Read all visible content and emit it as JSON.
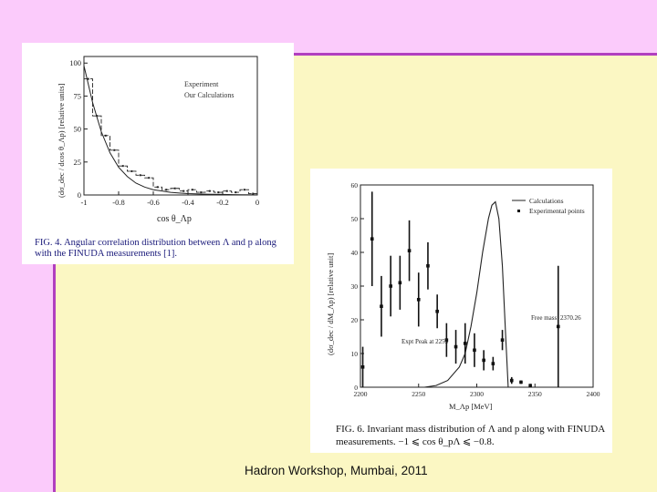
{
  "slide": {
    "footer": "Hadron Workshop, Mumbai, 2011",
    "colors": {
      "background": "#fbf7c3",
      "header": "#fbcbfb",
      "accent_line": "#b13fbf"
    }
  },
  "chart_data": [
    {
      "type": "line",
      "figure": "FIG. 4",
      "caption": "FIG. 4. Angular correlation distribution between Λ and p along with the FINUDA measurements [1].",
      "xlabel": "cos θ_Λp",
      "ylabel": "(dσ_dec / dcos θ_Λp) [relative units]",
      "xlim": [
        -1,
        0
      ],
      "ylim": [
        0,
        105
      ],
      "xticks": [
        "-1",
        "-0.8",
        "-0.6",
        "-0.4",
        "-0.2",
        "0"
      ],
      "yticks": [
        "0",
        "25",
        "50",
        "75",
        "100"
      ],
      "legend": [
        "Experiment",
        "Our Calculations"
      ],
      "legend_position": "top-right",
      "series": [
        {
          "name": "Experiment",
          "style": "histogram",
          "x": [
            -0.975,
            -0.925,
            -0.875,
            -0.825,
            -0.775,
            -0.725,
            -0.675,
            -0.625,
            -0.575,
            -0.525,
            -0.475,
            -0.425,
            -0.375,
            -0.325,
            -0.275,
            -0.225,
            -0.175,
            -0.125,
            -0.075,
            -0.025
          ],
          "y": [
            88,
            60,
            45,
            34,
            22,
            18,
            15,
            13,
            6,
            4,
            5,
            3,
            4,
            2,
            3,
            2,
            3,
            2,
            4,
            1
          ]
        },
        {
          "name": "Our Calculations",
          "style": "smooth",
          "x": [
            -1,
            -0.95,
            -0.9,
            -0.85,
            -0.8,
            -0.75,
            -0.7,
            -0.65,
            -0.6,
            -0.55,
            -0.5,
            -0.45,
            -0.4,
            -0.3,
            -0.2,
            -0.1,
            0
          ],
          "y": [
            98,
            70,
            48,
            32,
            21,
            14,
            9,
            6,
            4,
            3,
            2,
            1.5,
            1,
            0.6,
            0.4,
            0.2,
            0.1
          ]
        }
      ]
    },
    {
      "type": "scatter",
      "figure": "FIG. 6",
      "caption": "FIG. 6. Invariant mass distribution of Λ and p along with FINUDA measurements. −1 ⩽ cos θ_pΛ ⩽ −0.8.",
      "xlabel": "M_Λp [MeV]",
      "ylabel": "(dσ_dec / dM_Λp) [relative unit]",
      "xlim": [
        2200,
        2400
      ],
      "ylim": [
        0,
        60
      ],
      "xticks": [
        "2200",
        "2250",
        "2300",
        "2350",
        "2400"
      ],
      "yticks": [
        "0",
        "10",
        "20",
        "30",
        "40",
        "50",
        "60"
      ],
      "legend": [
        "Calculations",
        "Experimental points"
      ],
      "legend_position": "top-right",
      "annotations": [
        {
          "text": "Free mass: 2370.26",
          "x": 2370,
          "y": 20
        },
        {
          "text": "Expt Peak at 2255",
          "x": 2255,
          "y": 13
        }
      ],
      "series": [
        {
          "name": "Calculations",
          "style": "line",
          "x": [
            2255,
            2265,
            2275,
            2285,
            2290,
            2295,
            2300,
            2305,
            2310,
            2313,
            2316,
            2319,
            2322,
            2325,
            2327
          ],
          "y": [
            0,
            0.5,
            2,
            6,
            10,
            18,
            28,
            40,
            50,
            54,
            55,
            50,
            36,
            14,
            0
          ]
        },
        {
          "name": "Experimental points",
          "style": "points",
          "x": [
            2202,
            2210,
            2218,
            2226,
            2234,
            2242,
            2250,
            2258,
            2266,
            2274,
            2282,
            2290,
            2298,
            2306,
            2314,
            2322,
            2330,
            2338,
            2346,
            2370
          ],
          "y": [
            6,
            44,
            24,
            30,
            31,
            40.5,
            26,
            36,
            22.5,
            14,
            12,
            13,
            11,
            8,
            7,
            14,
            2,
            1.5,
            0.5,
            18
          ],
          "err": [
            6,
            14,
            9,
            9,
            8,
            9,
            8,
            7,
            5,
            5,
            5,
            6,
            5,
            3,
            2,
            3,
            1,
            0.5,
            0.5,
            18
          ]
        }
      ]
    }
  ]
}
